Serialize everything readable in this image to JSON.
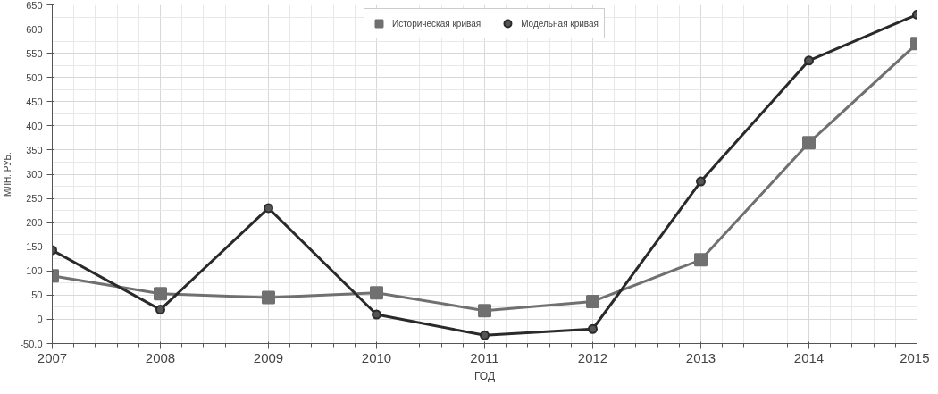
{
  "chart_data": {
    "type": "line",
    "xlabel": "ГОД",
    "ylabel": "МЛН. РУБ.",
    "x": [
      2007,
      2008,
      2009,
      2010,
      2011,
      2012,
      2013,
      2014,
      2015
    ],
    "series": [
      {
        "name": "Историческая кривая",
        "color": "#707070",
        "marker": "square",
        "values": [
          90,
          53,
          45,
          55,
          18,
          37,
          123,
          365,
          570
        ]
      },
      {
        "name": "Модельная кривая",
        "color": "#2a2a2a",
        "marker": "circle",
        "values": [
          143,
          20,
          230,
          10,
          -33,
          -20,
          285,
          535,
          630
        ]
      }
    ],
    "xlim": [
      2007,
      2015
    ],
    "xticks": [
      2007,
      2008,
      2009,
      2010,
      2011,
      2012,
      2013,
      2014,
      2015
    ],
    "ylim": [
      -50,
      650
    ],
    "yticks": [
      {
        "value": -50,
        "label": "-50.0"
      },
      0,
      50,
      100,
      150,
      200,
      250,
      300,
      350,
      400,
      450,
      500,
      550,
      600,
      650
    ],
    "grid": true,
    "legend": "top",
    "line_style": "solid"
  }
}
